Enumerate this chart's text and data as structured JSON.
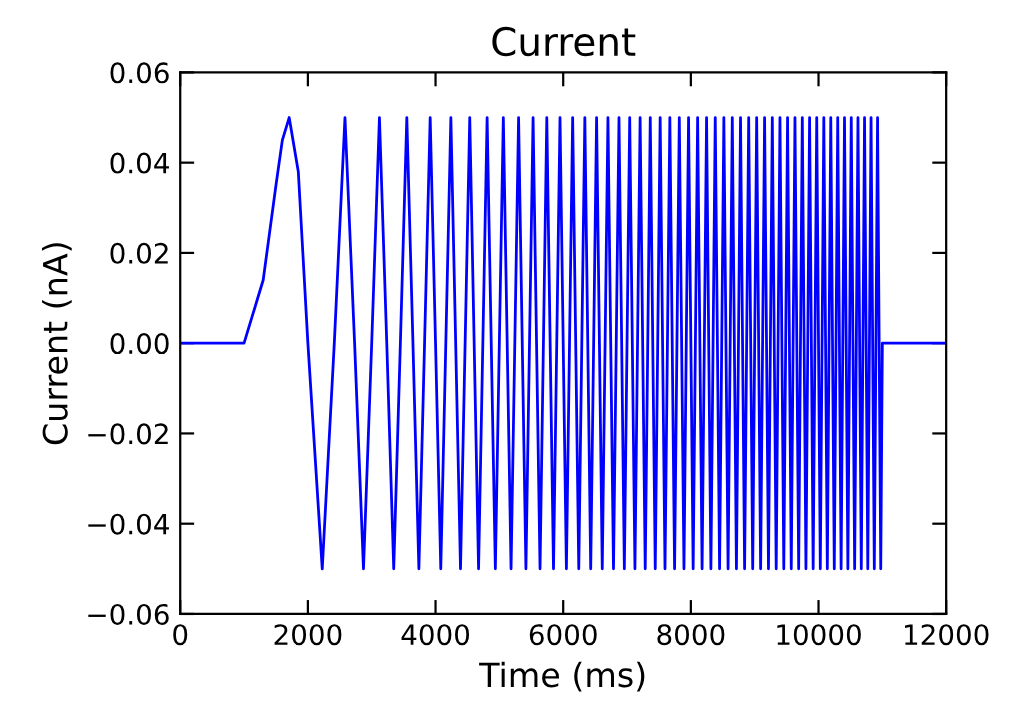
{
  "chart_data": {
    "type": "line",
    "title": "Current",
    "xlabel": "Time (ms)",
    "ylabel": "Current (nA)",
    "xlim": [
      0,
      12000
    ],
    "xticks": [
      0,
      2000,
      4000,
      6000,
      8000,
      10000,
      12000
    ],
    "ylim": [
      -0.06,
      0.06
    ],
    "yticks": [
      {
        "value": -0.06,
        "label": "−0.06"
      },
      {
        "value": -0.04,
        "label": "−0.04"
      },
      {
        "value": -0.02,
        "label": "−0.02"
      },
      {
        "value": 0,
        "label": "0.00"
      },
      {
        "value": 0.02,
        "label": "0.02"
      },
      {
        "value": 0.04,
        "label": "0.04"
      },
      {
        "value": 0.06,
        "label": "0.06"
      }
    ],
    "grid": false,
    "marker": "none",
    "line_style": "solid",
    "series": [
      {
        "color": "#0000ff",
        "x": [
          0,
          1000,
          1300,
          1500,
          1600,
          1707,
          1850,
          2000,
          2225,
          2414,
          2581,
          2732,
          2871,
          3000,
          3121,
          3236,
          3345,
          3449,
          3550,
          3646,
          3739,
          3828,
          3916,
          4000,
          4082,
          4240,
          4391,
          4536,
          4674,
          4808,
          4937,
          5062,
          5183,
          5301,
          5416,
          5528,
          5637,
          5743,
          5848,
          5950,
          6050,
          6148,
          6244,
          6339,
          6431,
          6523,
          6612,
          6701,
          6788,
          6874,
          6958,
          7042,
          7124,
          7205,
          7285,
          7364,
          7442,
          7519,
          7595,
          7671,
          7745,
          7819,
          7892,
          7964,
          8036,
          8106,
          8176,
          8246,
          8314,
          8382,
          8450,
          8517,
          8583,
          8649,
          8714,
          8778,
          8842,
          8906,
          8969,
          9031,
          9093,
          9155,
          9216,
          9276,
          9337,
          9396,
          9456,
          9515,
          9573,
          9631,
          9689,
          9746,
          9803,
          9860,
          9916,
          9972,
          10028,
          10083,
          10138,
          10192,
          10247,
          10301,
          10354,
          10407,
          10460,
          10513,
          10566,
          10618,
          10670,
          10721,
          10772,
          10823,
          10874,
          10925,
          10975,
          11000,
          12000
        ],
        "values": [
          0,
          0,
          0.014,
          0.035,
          0.045,
          0.05,
          0.038,
          0,
          -0.05,
          0,
          0.05,
          0,
          -0.05,
          0,
          0.05,
          0,
          -0.05,
          0,
          0.05,
          0,
          -0.05,
          0,
          0.05,
          0,
          -0.05,
          0.05,
          -0.05,
          0.05,
          -0.05,
          0.05,
          -0.05,
          0.05,
          -0.05,
          0.05,
          -0.05,
          0.05,
          -0.05,
          0.05,
          -0.05,
          0.05,
          -0.05,
          0.05,
          -0.05,
          0.05,
          -0.05,
          0.05,
          -0.05,
          0.05,
          -0.05,
          0.05,
          -0.05,
          0.05,
          -0.05,
          0.05,
          -0.05,
          0.05,
          -0.05,
          0.05,
          -0.05,
          0.05,
          -0.05,
          0.05,
          -0.05,
          0.05,
          -0.05,
          0.05,
          -0.05,
          0.05,
          -0.05,
          0.05,
          -0.05,
          0.05,
          -0.05,
          0.05,
          -0.05,
          0.05,
          -0.05,
          0.05,
          -0.05,
          0.05,
          -0.05,
          0.05,
          -0.05,
          0.05,
          -0.05,
          0.05,
          -0.05,
          0.05,
          -0.05,
          0.05,
          -0.05,
          0.05,
          -0.05,
          0.05,
          -0.05,
          0.05,
          -0.05,
          0.05,
          -0.05,
          0.05,
          -0.05,
          0.05,
          -0.05,
          0.05,
          -0.05,
          0.05,
          -0.05,
          0.05,
          -0.05,
          0.05,
          -0.05,
          0.05,
          -0.05,
          0.05,
          -0.05,
          0,
          0
        ]
      }
    ]
  }
}
